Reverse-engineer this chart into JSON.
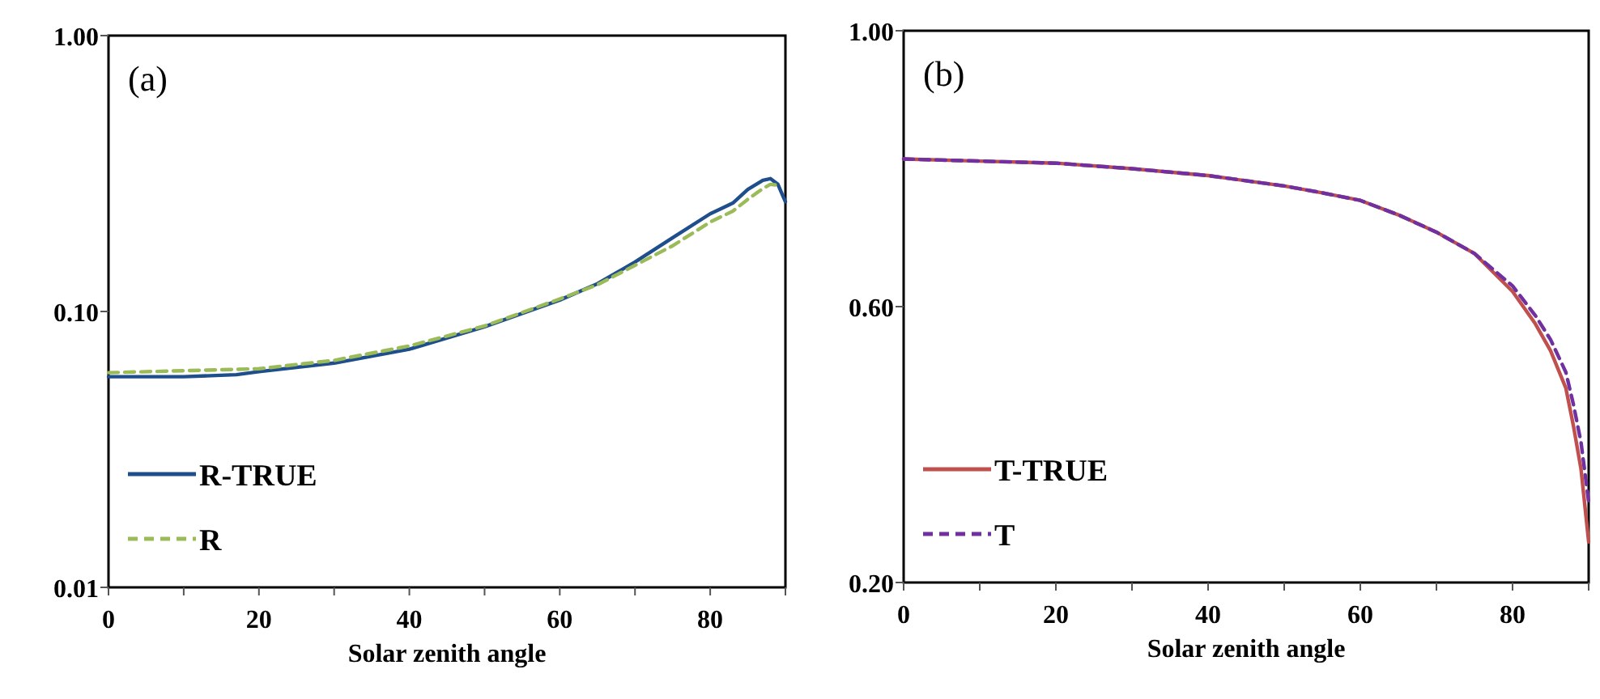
{
  "chart_data": [
    {
      "type": "line",
      "xlabel": "Solar zenith angle",
      "log": "y",
      "legend": "bottom left",
      "annotations": [
        "(a)"
      ],
      "xlim": [
        0,
        90
      ],
      "xticks": [
        0,
        {
          "value": 10,
          "label": null
        },
        20,
        {
          "value": 30,
          "label": null
        },
        40,
        {
          "value": 50,
          "label": null
        },
        60,
        {
          "value": 70,
          "label": null
        },
        80,
        {
          "value": 90,
          "label": null
        }
      ],
      "ylim": [
        0.01,
        1
      ],
      "yticks": [
        {
          "value": 0.01,
          "label": "0.01"
        },
        {
          "value": 0.1,
          "label": "0.10"
        },
        {
          "value": 1,
          "label": "1.00"
        }
      ],
      "series": [
        {
          "name": "R-TRUE",
          "color": "#1f4e8c",
          "line_style": "solid",
          "x": [
            0,
            10,
            17,
            20,
            30,
            40,
            50,
            60,
            65,
            70,
            75,
            80,
            83,
            85,
            87,
            88,
            89,
            90
          ],
          "values": [
            0.058,
            0.058,
            0.059,
            0.0605,
            0.065,
            0.073,
            0.088,
            0.11,
            0.126,
            0.151,
            0.185,
            0.226,
            0.247,
            0.277,
            0.299,
            0.303,
            0.289,
            0.25
          ]
        },
        {
          "name": "R",
          "color": "#9bbb59",
          "line_style": "dashed",
          "x": [
            0,
            20,
            30,
            40,
            50,
            60,
            65,
            70,
            75,
            80,
            83,
            85,
            87,
            88,
            89
          ],
          "values": [
            0.06,
            0.062,
            0.0665,
            0.075,
            0.0886,
            0.111,
            0.125,
            0.147,
            0.173,
            0.211,
            0.231,
            0.255,
            0.279,
            0.289,
            0.287
          ]
        }
      ]
    },
    {
      "type": "line",
      "xlabel": "Solar zenith angle",
      "legend": "bottom left",
      "annotations": [
        "(b)"
      ],
      "xlim": [
        0,
        90
      ],
      "xticks": [
        0,
        {
          "value": 10,
          "label": null
        },
        20,
        {
          "value": 30,
          "label": null
        },
        40,
        {
          "value": 50,
          "label": null
        },
        60,
        {
          "value": 70,
          "label": null
        },
        80,
        {
          "value": 90,
          "label": null
        }
      ],
      "ylim": [
        0.2,
        1
      ],
      "yticks": [
        {
          "value": 0.2,
          "label": "0.20"
        },
        {
          "value": 0.6,
          "label": "0.60"
        },
        {
          "value": 1,
          "label": "1.00"
        }
      ],
      "series": [
        {
          "name": "T-TRUE",
          "color": "#c0504d",
          "line_style": "solid",
          "x": [
            0,
            10,
            20,
            30,
            40,
            50,
            55,
            60,
            65,
            70,
            75,
            80,
            83,
            85,
            87,
            88,
            89,
            90
          ],
          "values": [
            0.814,
            0.811,
            0.808,
            0.8,
            0.79,
            0.775,
            0.765,
            0.754,
            0.733,
            0.708,
            0.677,
            0.622,
            0.575,
            0.536,
            0.482,
            0.427,
            0.364,
            0.259
          ]
        },
        {
          "name": "T",
          "color": "#7030a0",
          "line_style": "dashed",
          "x": [
            0,
            10,
            20,
            30,
            40,
            50,
            55,
            60,
            65,
            70,
            75,
            80,
            83,
            85,
            87,
            88,
            89,
            90
          ],
          "values": [
            0.814,
            0.811,
            0.808,
            0.8,
            0.79,
            0.775,
            0.765,
            0.754,
            0.733,
            0.708,
            0.677,
            0.63,
            0.587,
            0.552,
            0.505,
            0.458,
            0.403,
            0.317
          ]
        }
      ]
    }
  ]
}
